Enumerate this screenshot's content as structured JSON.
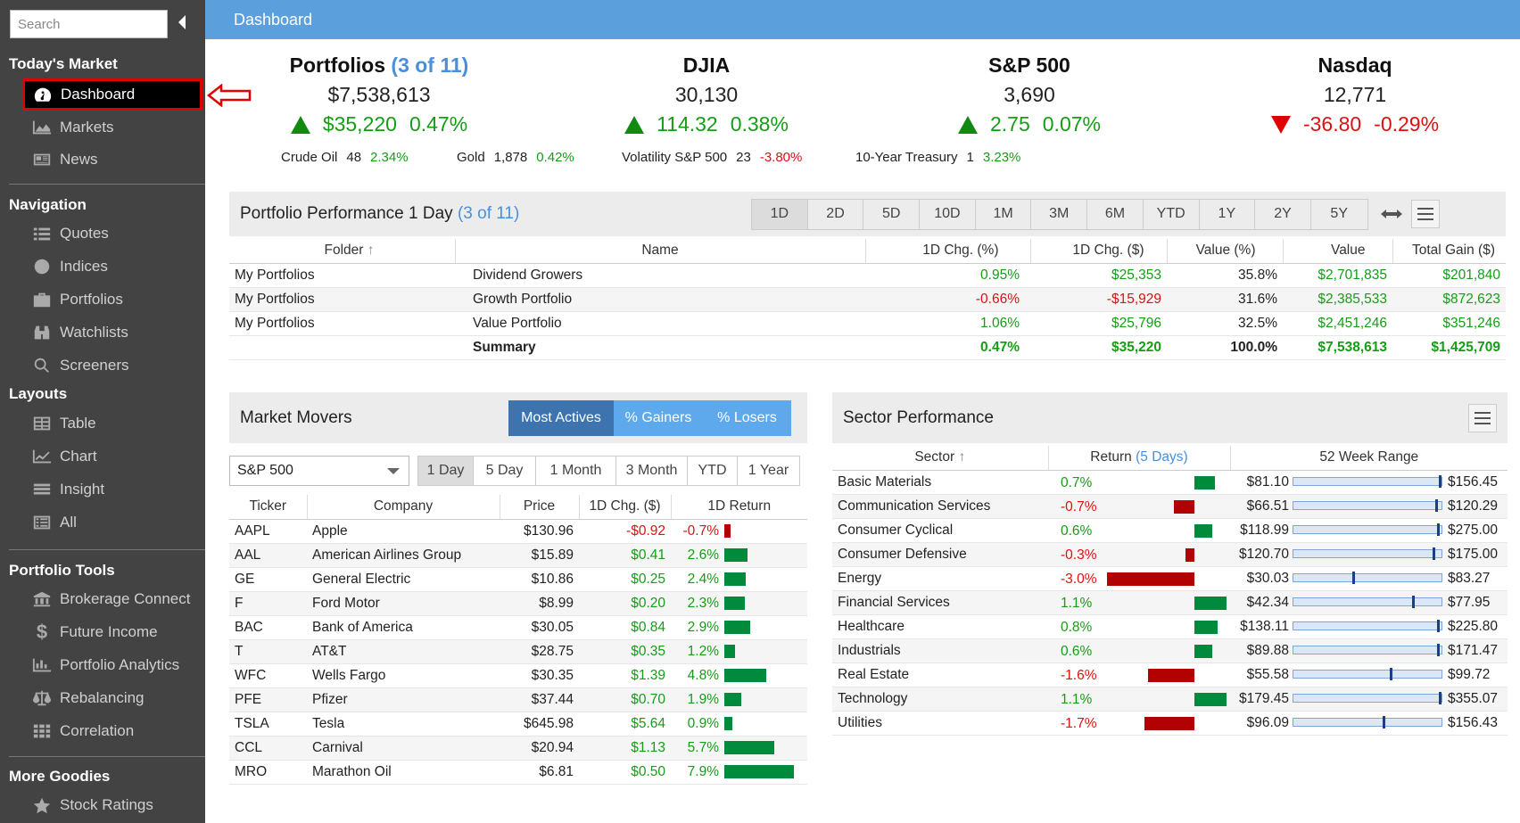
{
  "sidebar": {
    "search_placeholder": "Search",
    "sections": {
      "todays_market": "Today's Market",
      "navigation": "Navigation",
      "layouts": "Layouts",
      "portfolio_tools": "Portfolio Tools",
      "more_goodies": "More Goodies"
    },
    "items": {
      "dashboard": "Dashboard",
      "markets": "Markets",
      "news": "News",
      "quotes": "Quotes",
      "indices": "Indices",
      "portfolios": "Portfolios",
      "watchlists": "Watchlists",
      "screeners": "Screeners",
      "table": "Table",
      "chart": "Chart",
      "insight": "Insight",
      "all": "All",
      "brokerage_connect": "Brokerage Connect",
      "future_income": "Future Income",
      "portfolio_analytics": "Portfolio Analytics",
      "rebalancing": "Rebalancing",
      "correlation": "Correlation",
      "stock_ratings": "Stock Ratings"
    }
  },
  "header": {
    "title": "Dashboard"
  },
  "tickers": {
    "portfolios": {
      "name": "Portfolios",
      "sub": "(3 of 11)",
      "price": "$7,538,613",
      "chg": "$35,220",
      "pct": "0.47%"
    },
    "djia": {
      "name": "DJIA",
      "price": "30,130",
      "chg": "114.32",
      "pct": "0.38%"
    },
    "sp500": {
      "name": "S&P 500",
      "price": "3,690",
      "chg": "2.75",
      "pct": "0.07%"
    },
    "nasdaq": {
      "name": "Nasdaq",
      "price": "12,771",
      "chg": "-36.80",
      "pct": "-0.29%"
    }
  },
  "mini": {
    "crude": {
      "label": "Crude Oil",
      "value": "48",
      "pct": "2.34%"
    },
    "gold": {
      "label": "Gold",
      "value": "1,878",
      "pct": "0.42%"
    },
    "vol": {
      "label": "Volatility S&P 500",
      "value": "23",
      "pct": "-3.80%"
    },
    "treasury": {
      "label": "10-Year Treasury",
      "value": "1",
      "pct": "3.23%"
    }
  },
  "perf": {
    "title": "Portfolio Performance 1 Day",
    "sub": "(3 of 11)",
    "periods": [
      "1D",
      "2D",
      "5D",
      "10D",
      "1M",
      "3M",
      "6M",
      "YTD",
      "1Y",
      "2Y",
      "5Y"
    ],
    "columns": [
      "Folder",
      "Name",
      "1D Chg. (%)",
      "1D Chg. ($)",
      "Value (%)",
      "Value",
      "Total Gain ($)"
    ],
    "rows": [
      [
        "My Portfolios",
        "Dividend Growers",
        "0.95%",
        "$25,353",
        "35.8%",
        "$2,701,835",
        "$201,840"
      ],
      [
        "My Portfolios",
        "Growth Portfolio",
        "-0.66%",
        "-$15,929",
        "31.6%",
        "$2,385,533",
        "$872,623"
      ],
      [
        "My Portfolios",
        "Value Portfolio",
        "1.06%",
        "$25,796",
        "32.5%",
        "$2,451,246",
        "$351,246"
      ]
    ],
    "summary": [
      "",
      "Summary",
      "0.47%",
      "$35,220",
      "100.0%",
      "$7,538,613",
      "$1,425,709"
    ]
  },
  "movers": {
    "title": "Market Movers",
    "tabs": [
      "Most Actives",
      "% Gainers",
      "% Losers"
    ],
    "index_select": "S&P 500",
    "periods": [
      "1 Day",
      "5 Day",
      "1 Month",
      "3 Month",
      "YTD",
      "1 Year"
    ],
    "columns": [
      "Ticker",
      "Company",
      "Price",
      "1D Chg. ($)",
      "1D Return"
    ],
    "rows": [
      {
        "ticker": "AAPL",
        "company": "Apple",
        "price": "$130.96",
        "chg": "-$0.92",
        "ret": "-0.7%",
        "ret_value": -0.7
      },
      {
        "ticker": "AAL",
        "company": "American Airlines Group",
        "price": "$15.89",
        "chg": "$0.41",
        "ret": "2.6%",
        "ret_value": 2.6
      },
      {
        "ticker": "GE",
        "company": "General Electric",
        "price": "$10.86",
        "chg": "$0.25",
        "ret": "2.4%",
        "ret_value": 2.4
      },
      {
        "ticker": "F",
        "company": "Ford Motor",
        "price": "$8.99",
        "chg": "$0.20",
        "ret": "2.3%",
        "ret_value": 2.3
      },
      {
        "ticker": "BAC",
        "company": "Bank of America",
        "price": "$30.05",
        "chg": "$0.84",
        "ret": "2.9%",
        "ret_value": 2.9
      },
      {
        "ticker": "T",
        "company": "AT&T",
        "price": "$28.75",
        "chg": "$0.35",
        "ret": "1.2%",
        "ret_value": 1.2
      },
      {
        "ticker": "WFC",
        "company": "Wells Fargo",
        "price": "$30.35",
        "chg": "$1.39",
        "ret": "4.8%",
        "ret_value": 4.8
      },
      {
        "ticker": "PFE",
        "company": "Pfizer",
        "price": "$37.44",
        "chg": "$0.70",
        "ret": "1.9%",
        "ret_value": 1.9
      },
      {
        "ticker": "TSLA",
        "company": "Tesla",
        "price": "$645.98",
        "chg": "$5.64",
        "ret": "0.9%",
        "ret_value": 0.9
      },
      {
        "ticker": "CCL",
        "company": "Carnival",
        "price": "$20.94",
        "chg": "$1.13",
        "ret": "5.7%",
        "ret_value": 5.7
      },
      {
        "ticker": "MRO",
        "company": "Marathon Oil",
        "price": "$6.81",
        "chg": "$0.50",
        "ret": "7.9%",
        "ret_value": 7.9
      }
    ]
  },
  "sectors": {
    "title": "Sector Performance",
    "col_sector": "Sector",
    "col_return": "Return",
    "col_return_sub": "(5 Days)",
    "col_range": "52 Week Range",
    "rows": [
      {
        "name": "Basic Materials",
        "ret": "0.7%",
        "ret_value": 0.7,
        "low": "$81.10",
        "high": "$156.45",
        "pos": 0.98
      },
      {
        "name": "Communication Services",
        "ret": "-0.7%",
        "ret_value": -0.7,
        "low": "$66.51",
        "high": "$120.29",
        "pos": 0.96
      },
      {
        "name": "Consumer Cyclical",
        "ret": "0.6%",
        "ret_value": 0.6,
        "low": "$118.99",
        "high": "$275.00",
        "pos": 0.97
      },
      {
        "name": "Consumer Defensive",
        "ret": "-0.3%",
        "ret_value": -0.3,
        "low": "$120.70",
        "high": "$175.00",
        "pos": 0.94
      },
      {
        "name": "Energy",
        "ret": "-3.0%",
        "ret_value": -3.0,
        "low": "$30.03",
        "high": "$83.27",
        "pos": 0.4
      },
      {
        "name": "Financial Services",
        "ret": "1.1%",
        "ret_value": 1.1,
        "low": "$42.34",
        "high": "$77.95",
        "pos": 0.8
      },
      {
        "name": "Healthcare",
        "ret": "0.8%",
        "ret_value": 0.8,
        "low": "$138.11",
        "high": "$225.80",
        "pos": 0.97
      },
      {
        "name": "Industrials",
        "ret": "0.6%",
        "ret_value": 0.6,
        "low": "$89.88",
        "high": "$171.47",
        "pos": 0.97
      },
      {
        "name": "Real Estate",
        "ret": "-1.6%",
        "ret_value": -1.6,
        "low": "$55.58",
        "high": "$99.72",
        "pos": 0.65
      },
      {
        "name": "Technology",
        "ret": "1.1%",
        "ret_value": 1.1,
        "low": "$179.45",
        "high": "$355.07",
        "pos": 0.98
      },
      {
        "name": "Utilities",
        "ret": "-1.7%",
        "ret_value": -1.7,
        "low": "$96.09",
        "high": "$156.43",
        "pos": 0.6
      }
    ]
  },
  "colors": {
    "up": "#169d16",
    "down": "#e01010",
    "accent": "#5b9fdc",
    "bar_up": "#008a3c",
    "bar_down": "#b30000"
  }
}
